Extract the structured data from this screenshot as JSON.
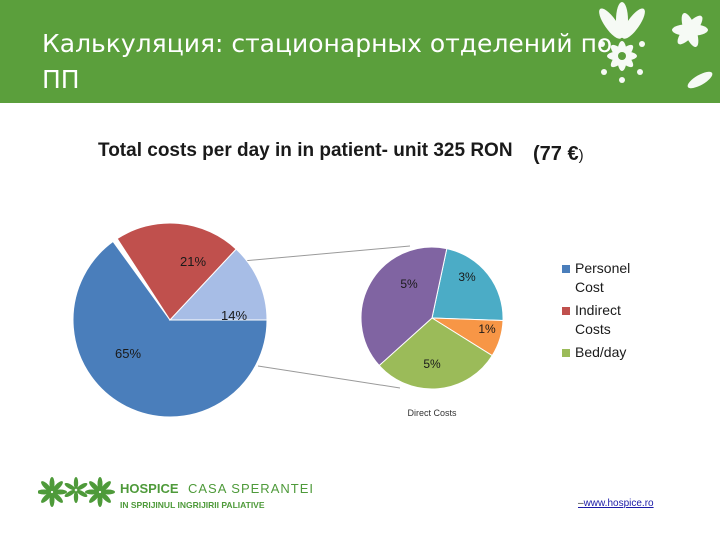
{
  "header": {
    "title_line1": "Калькуляция: стационарных отделений по",
    "title_line2": "ПП",
    "background_color": "#5b9f3c"
  },
  "chart_data": {
    "type": "pie",
    "title": "Total costs per day in in patient- unit 325 RON",
    "title_euro": "(77 €",
    "title_euro_close": ")",
    "main_pie": {
      "slices": [
        {
          "legend": "Personel Cost",
          "value": 65,
          "label": "65%",
          "color": "#4a7ebb"
        },
        {
          "legend": "Indirect Costs",
          "value": 21,
          "label": "21%",
          "color": "#c0504d"
        },
        {
          "legend": "",
          "value": 14,
          "label": "14%",
          "color": "#a7bde6"
        }
      ]
    },
    "secondary_pie": {
      "label": "Direct Costs",
      "slices": [
        {
          "value": 3,
          "label": "3%",
          "color": "#4bacc6"
        },
        {
          "value": 1,
          "label": "1%",
          "color": "#f79646"
        },
        {
          "value": 5,
          "label": "5%",
          "color": "#9bbb59"
        },
        {
          "value": 5,
          "label": "5%",
          "color": "#8064a2"
        }
      ]
    },
    "legend": [
      {
        "line1": "Personel",
        "line2": "Cost",
        "color": "#4a7ebb"
      },
      {
        "line1": "Indirect",
        "line2": "Costs",
        "color": "#c0504d"
      },
      {
        "line1": "Bed/day",
        "line2": "",
        "color": "#9bbb59"
      }
    ],
    "legend_position": "right"
  },
  "footer": {
    "logo_word_bold": "HOSPICE",
    "logo_word_light": "CASA SPERANTEI",
    "tagline": "IN SPRIJINUL INGRIJIRII PALIATIVE",
    "link_dash": "–",
    "link_text": "www.hospice.ro",
    "logo_color": "#4e9a3a"
  }
}
